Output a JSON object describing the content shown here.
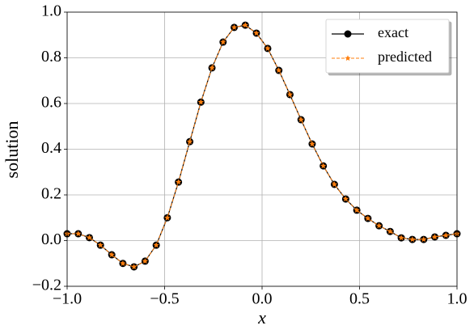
{
  "chart_data": {
    "type": "line",
    "xlabel": "x",
    "ylabel": "solution",
    "x": [
      -1.0,
      -0.943,
      -0.886,
      -0.829,
      -0.771,
      -0.714,
      -0.657,
      -0.6,
      -0.543,
      -0.486,
      -0.429,
      -0.371,
      -0.314,
      -0.257,
      -0.2,
      -0.143,
      -0.086,
      -0.029,
      0.029,
      0.086,
      0.143,
      0.2,
      0.257,
      0.314,
      0.371,
      0.429,
      0.486,
      0.543,
      0.6,
      0.657,
      0.714,
      0.771,
      0.829,
      0.886,
      0.943,
      1.0
    ],
    "series": [
      {
        "name": "exact",
        "color": "#000000",
        "marker": "circle",
        "linestyle": "solid",
        "values": [
          0.03,
          0.03,
          0.013,
          -0.02,
          -0.062,
          -0.1,
          -0.115,
          -0.09,
          -0.02,
          0.1,
          0.256,
          0.433,
          0.606,
          0.756,
          0.869,
          0.933,
          0.943,
          0.908,
          0.841,
          0.745,
          0.639,
          0.529,
          0.423,
          0.327,
          0.246,
          0.182,
          0.133,
          0.097,
          0.065,
          0.04,
          0.012,
          0.005,
          0.005,
          0.016,
          0.023,
          0.03
        ]
      },
      {
        "name": "predicted",
        "color": "#ff7f0e",
        "marker": "star",
        "linestyle": "dashed",
        "values": [
          0.03,
          0.03,
          0.013,
          -0.02,
          -0.062,
          -0.1,
          -0.115,
          -0.09,
          -0.02,
          0.1,
          0.256,
          0.433,
          0.606,
          0.756,
          0.869,
          0.933,
          0.943,
          0.908,
          0.841,
          0.745,
          0.639,
          0.529,
          0.423,
          0.327,
          0.246,
          0.182,
          0.133,
          0.097,
          0.065,
          0.04,
          0.012,
          0.005,
          0.005,
          0.016,
          0.023,
          0.03
        ]
      }
    ],
    "xlim": [
      -1.0,
      1.0
    ],
    "ylim": [
      -0.2,
      1.0
    ],
    "xticks": [
      {
        "value": -1.0,
        "label": "−1.0"
      },
      {
        "value": -0.5,
        "label": "−0.5"
      },
      {
        "value": 0.0,
        "label": "0.0"
      },
      0.5,
      {
        "value": 1.0,
        "label": "1.0"
      }
    ],
    "yticks": [
      {
        "value": -0.2,
        "label": "−0.2"
      },
      {
        "value": 0.0,
        "label": "0.0"
      },
      0.2,
      0.4,
      0.6,
      0.8,
      {
        "value": 1.0,
        "label": "1.0"
      }
    ],
    "grid": true,
    "legend": "upper right"
  }
}
